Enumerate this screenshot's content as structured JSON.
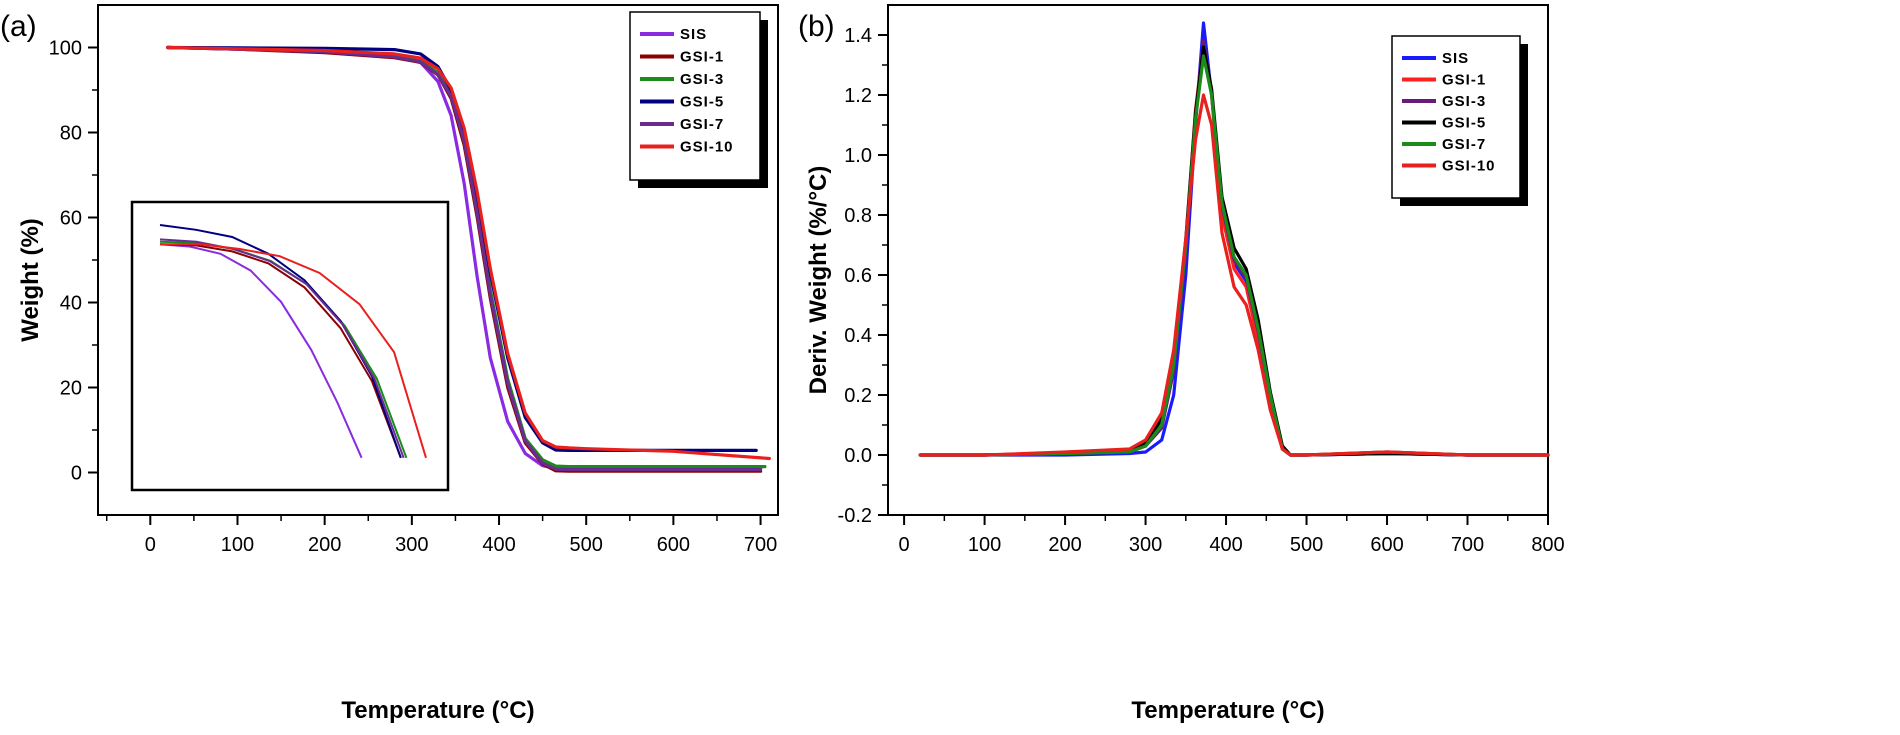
{
  "chart_data": [
    {
      "panel": "(a)",
      "type": "line",
      "xlabel": "Temperature (°C)",
      "ylabel": "Weight (%)",
      "xlim": [
        -60,
        720
      ],
      "ylim": [
        -10,
        110
      ],
      "xticks": [
        0,
        100,
        200,
        300,
        400,
        500,
        600,
        700
      ],
      "yticks": [
        0,
        20,
        40,
        60,
        80,
        100
      ],
      "legend_position": "top-right",
      "series": [
        {
          "name": "SIS",
          "color": "#8a2be2",
          "x": [
            20,
            100,
            200,
            280,
            310,
            330,
            345,
            360,
            375,
            390,
            410,
            430,
            450,
            465,
            480,
            500,
            600,
            700
          ],
          "y": [
            100,
            99.6,
            99,
            98,
            96.5,
            92,
            84,
            68,
            46,
            27,
            12,
            4.5,
            1.6,
            1.0,
            0.9,
            0.9,
            0.9,
            0.9
          ]
        },
        {
          "name": "GSI-1",
          "color": "#8b0000",
          "x": [
            20,
            100,
            200,
            280,
            310,
            330,
            345,
            360,
            375,
            390,
            410,
            430,
            450,
            465,
            480,
            500,
            600,
            700
          ],
          "y": [
            100,
            99.6,
            98.8,
            97.6,
            96.5,
            93.5,
            88,
            77,
            60,
            41,
            20,
            7,
            2,
            0.4,
            0.3,
            0.3,
            0.3,
            0.3
          ]
        },
        {
          "name": "GSI-3",
          "color": "#1a8c1a",
          "x": [
            20,
            100,
            200,
            280,
            310,
            330,
            345,
            360,
            375,
            390,
            410,
            430,
            450,
            465,
            480,
            500,
            600,
            705
          ],
          "y": [
            100,
            99.7,
            99.2,
            98.2,
            97,
            94,
            89,
            78,
            62,
            43,
            22,
            8,
            3,
            1.5,
            1.4,
            1.4,
            1.4,
            1.4
          ]
        },
        {
          "name": "GSI-5",
          "color": "#000080",
          "x": [
            20,
            100,
            200,
            280,
            310,
            330,
            345,
            360,
            375,
            390,
            410,
            430,
            450,
            465,
            480,
            500,
            600,
            695
          ],
          "y": [
            100,
            99.9,
            99.8,
            99.5,
            98.5,
            95.5,
            90,
            80,
            65,
            47,
            27,
            13,
            7,
            5.3,
            5.2,
            5.2,
            5.2,
            5.2
          ]
        },
        {
          "name": "GSI-7",
          "color": "#6a2c91",
          "x": [
            20,
            100,
            200,
            280,
            310,
            330,
            345,
            360,
            375,
            390,
            410,
            430,
            450,
            465,
            480,
            500,
            600,
            700
          ],
          "y": [
            100,
            99.6,
            99,
            97.8,
            96.6,
            93.6,
            88.5,
            78,
            61,
            42,
            21,
            7.5,
            2.2,
            0.8,
            0.7,
            0.7,
            0.7,
            0.7
          ]
        },
        {
          "name": "GSI-10",
          "color": "#e8201e",
          "x": [
            20,
            100,
            200,
            280,
            310,
            330,
            345,
            360,
            375,
            390,
            410,
            430,
            450,
            465,
            480,
            500,
            600,
            710
          ],
          "y": [
            100,
            99.7,
            99.3,
            98.5,
            97.5,
            95,
            90.5,
            81,
            66,
            48,
            28,
            14,
            7.5,
            6,
            5.8,
            5.6,
            5,
            3.3
          ]
        }
      ],
      "inset": {
        "note": "zoomed onset region (no axes shown)",
        "series": [
          {
            "name": "SIS",
            "color": "#8a2be2",
            "x": [
              0,
              0.15,
              0.3,
              0.45,
              0.6,
              0.75,
              0.88,
              1.0
            ],
            "y": [
              0.92,
              0.91,
              0.88,
              0.81,
              0.68,
              0.48,
              0.26,
              0.03
            ]
          },
          {
            "name": "GSI-1",
            "color": "#8b0000",
            "x": [
              0,
              0.15,
              0.3,
              0.45,
              0.6,
              0.75,
              0.88,
              1.0
            ],
            "y": [
              0.92,
              0.915,
              0.89,
              0.84,
              0.74,
              0.57,
              0.35,
              0.03
            ]
          },
          {
            "name": "GSI-3",
            "color": "#1a8c1a",
            "x": [
              0,
              0.15,
              0.3,
              0.45,
              0.6,
              0.75,
              0.88,
              1.0
            ],
            "y": [
              0.93,
              0.925,
              0.9,
              0.85,
              0.75,
              0.58,
              0.36,
              0.03
            ]
          },
          {
            "name": "GSI-5",
            "color": "#000080",
            "x": [
              0,
              0.15,
              0.3,
              0.45,
              0.6,
              0.75,
              0.88,
              1.0
            ],
            "y": [
              1.0,
              0.98,
              0.95,
              0.88,
              0.77,
              0.6,
              0.37,
              0.03
            ]
          },
          {
            "name": "GSI-7",
            "color": "#6a2c91",
            "x": [
              0,
              0.15,
              0.3,
              0.45,
              0.6,
              0.75,
              0.88,
              1.0
            ],
            "y": [
              0.94,
              0.93,
              0.9,
              0.85,
              0.755,
              0.585,
              0.36,
              0.03
            ]
          },
          {
            "name": "GSI-10",
            "color": "#e8201e",
            "x": [
              0,
              0.15,
              0.3,
              0.45,
              0.6,
              0.75,
              0.88,
              1.0
            ],
            "y": [
              0.92,
              0.92,
              0.9,
              0.87,
              0.8,
              0.67,
              0.47,
              0.03
            ]
          }
        ]
      }
    },
    {
      "panel": "(b)",
      "type": "line",
      "xlabel": "Temperature (°C)",
      "ylabel": "Deriv. Weight (%/°C)",
      "xlim": [
        -20,
        800
      ],
      "ylim": [
        -0.2,
        1.5
      ],
      "xticks": [
        0,
        100,
        200,
        300,
        400,
        500,
        600,
        700,
        800
      ],
      "yticks": [
        -0.2,
        0.0,
        0.2,
        0.4,
        0.6,
        0.8,
        1.0,
        1.2,
        1.4
      ],
      "legend_position": "top-right",
      "series": [
        {
          "name": "SIS",
          "color": "#1a1aff",
          "x": [
            20,
            100,
            200,
            280,
            300,
            320,
            335,
            350,
            362,
            372,
            382,
            395,
            410,
            425,
            440,
            455,
            470,
            480,
            500,
            600,
            700,
            800
          ],
          "y": [
            0,
            0,
            0,
            0.005,
            0.01,
            0.05,
            0.2,
            0.6,
            1.1,
            1.44,
            1.2,
            0.82,
            0.64,
            0.58,
            0.4,
            0.18,
            0.02,
            0,
            0,
            0.005,
            0,
            0
          ]
        },
        {
          "name": "GSI-1",
          "color": "#ff2020",
          "x": [
            20,
            100,
            200,
            280,
            300,
            320,
            335,
            350,
            362,
            372,
            382,
            395,
            410,
            425,
            440,
            455,
            470,
            480,
            500,
            600,
            700,
            800
          ],
          "y": [
            0,
            0,
            0.005,
            0.01,
            0.03,
            0.1,
            0.3,
            0.7,
            1.15,
            1.37,
            1.2,
            0.8,
            0.62,
            0.56,
            0.38,
            0.17,
            0.02,
            0,
            0,
            0.01,
            0,
            0
          ]
        },
        {
          "name": "GSI-3",
          "color": "#6a1b7a",
          "x": [
            20,
            100,
            200,
            280,
            300,
            320,
            335,
            350,
            362,
            372,
            382,
            395,
            410,
            425,
            440,
            455,
            470,
            480,
            500,
            600,
            700,
            800
          ],
          "y": [
            0,
            0,
            0.005,
            0.01,
            0.03,
            0.09,
            0.28,
            0.68,
            1.12,
            1.38,
            1.21,
            0.83,
            0.65,
            0.59,
            0.41,
            0.19,
            0.02,
            0,
            0,
            0.005,
            0,
            0
          ]
        },
        {
          "name": "GSI-5",
          "color": "#000000",
          "x": [
            20,
            100,
            200,
            280,
            300,
            320,
            335,
            350,
            362,
            372,
            382,
            395,
            410,
            425,
            440,
            455,
            470,
            480,
            500,
            600,
            700,
            800
          ],
          "y": [
            0,
            0,
            0.005,
            0.01,
            0.04,
            0.12,
            0.32,
            0.72,
            1.14,
            1.36,
            1.22,
            0.86,
            0.69,
            0.62,
            0.45,
            0.21,
            0.03,
            0,
            0,
            0.005,
            0,
            0
          ]
        },
        {
          "name": "GSI-7",
          "color": "#1a8c1a",
          "x": [
            20,
            100,
            200,
            280,
            300,
            320,
            335,
            350,
            362,
            372,
            382,
            395,
            410,
            425,
            440,
            455,
            470,
            480,
            500,
            600,
            700,
            800
          ],
          "y": [
            0,
            0,
            0.005,
            0.01,
            0.03,
            0.1,
            0.3,
            0.7,
            1.12,
            1.33,
            1.2,
            0.84,
            0.66,
            0.6,
            0.42,
            0.2,
            0.02,
            0,
            0,
            0.01,
            0,
            0
          ]
        },
        {
          "name": "GSI-10",
          "color": "#e8201e",
          "x": [
            20,
            100,
            200,
            280,
            300,
            320,
            335,
            350,
            362,
            372,
            382,
            395,
            410,
            425,
            440,
            455,
            470,
            480,
            500,
            600,
            700,
            800
          ],
          "y": [
            0,
            0,
            0.01,
            0.02,
            0.05,
            0.14,
            0.35,
            0.72,
            1.05,
            1.2,
            1.1,
            0.74,
            0.56,
            0.5,
            0.35,
            0.15,
            0.02,
            0,
            0,
            0.01,
            0,
            0
          ]
        }
      ]
    }
  ]
}
